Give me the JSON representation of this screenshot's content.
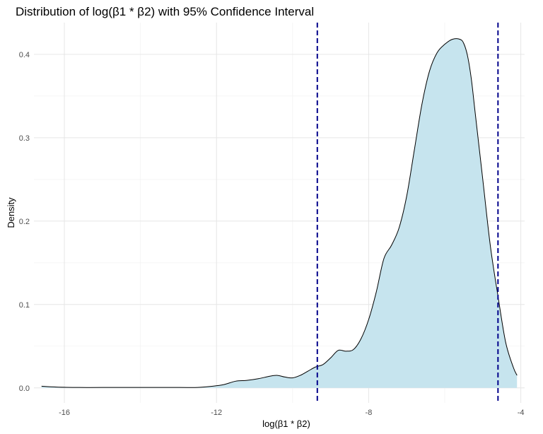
{
  "chart_data": {
    "type": "area",
    "title": "Distribution of log(β1 * β2) with 95% Confidence Interval",
    "xlabel": "log(β1 * β2)",
    "ylabel": "Density",
    "xlim": [
      -16.8,
      -3.9
    ],
    "ylim": [
      -0.018,
      0.438
    ],
    "x_ticks": [
      -16,
      -12,
      -8,
      -4
    ],
    "y_ticks": [
      0.0,
      0.1,
      0.2,
      0.3,
      0.4
    ],
    "x_tick_labels": [
      "-16",
      "-12",
      "-8",
      "-4"
    ],
    "y_tick_labels": [
      "0.0",
      "0.1",
      "0.2",
      "0.3",
      "0.4"
    ],
    "grid": true,
    "fill_color": "#c6e4ee",
    "line_color": "#000000",
    "ci_line_color": "#00008b",
    "confidence_interval": [
      -9.35,
      -4.6
    ],
    "density": {
      "x": [
        -16.6,
        -16.2,
        -15.6,
        -15.0,
        -14.0,
        -13.0,
        -12.5,
        -12.1,
        -11.8,
        -11.5,
        -11.2,
        -10.9,
        -10.6,
        -10.4,
        -10.2,
        -10.0,
        -9.8,
        -9.6,
        -9.4,
        -9.2,
        -9.0,
        -8.8,
        -8.6,
        -8.4,
        -8.2,
        -8.0,
        -7.8,
        -7.6,
        -7.4,
        -7.2,
        -7.0,
        -6.8,
        -6.6,
        -6.4,
        -6.2,
        -6.0,
        -5.8,
        -5.6,
        -5.5,
        -5.4,
        -5.3,
        -5.2,
        -5.0,
        -4.8,
        -4.6,
        -4.4,
        -4.2,
        -4.1
      ],
      "y": [
        0.002,
        0.001,
        0.0005,
        0.0005,
        0.0005,
        0.0005,
        0.0005,
        0.002,
        0.004,
        0.008,
        0.009,
        0.011,
        0.014,
        0.015,
        0.013,
        0.012,
        0.015,
        0.02,
        0.025,
        0.028,
        0.036,
        0.045,
        0.044,
        0.046,
        0.059,
        0.082,
        0.115,
        0.155,
        0.171,
        0.192,
        0.23,
        0.285,
        0.34,
        0.38,
        0.402,
        0.412,
        0.418,
        0.418,
        0.413,
        0.398,
        0.37,
        0.33,
        0.25,
        0.17,
        0.11,
        0.055,
        0.025,
        0.015
      ]
    }
  }
}
